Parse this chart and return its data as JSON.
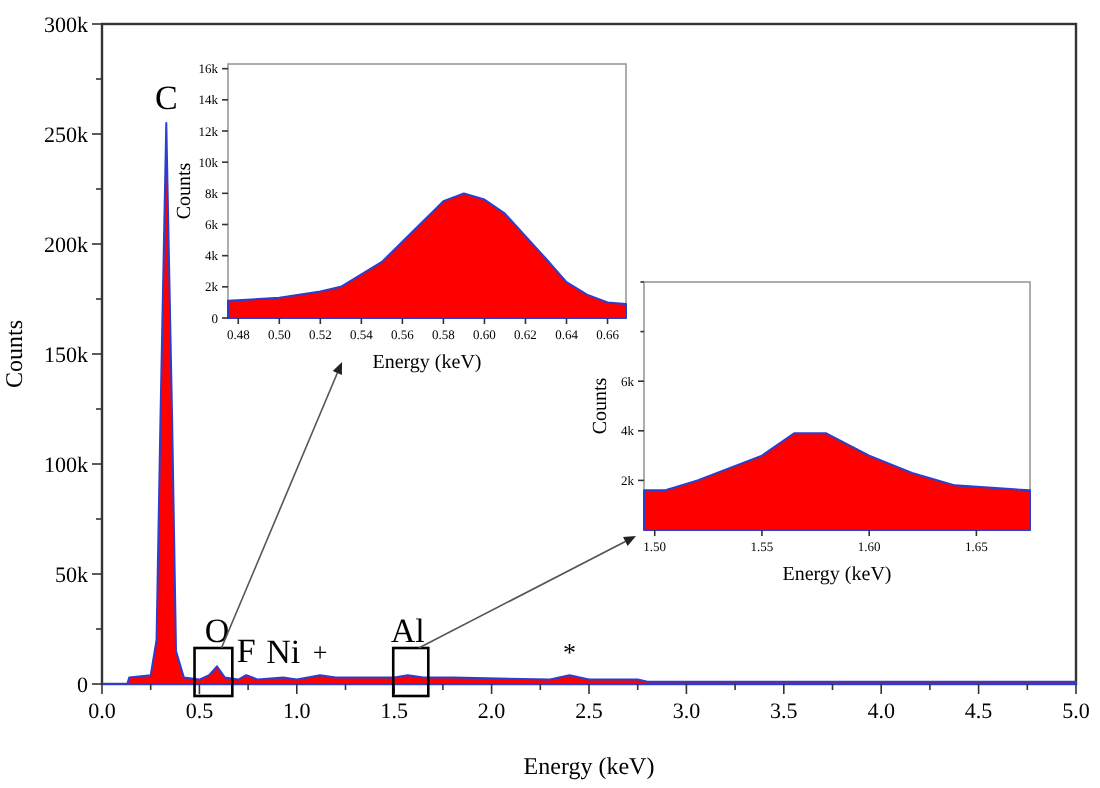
{
  "chart_data": [
    {
      "type": "area",
      "xlabel": "Energy (keV)",
      "ylabel": "Counts",
      "xlim": [
        0,
        5
      ],
      "ylim": [
        0,
        300000
      ],
      "xticks": [
        {
          "value": 0,
          "label": "0.0"
        },
        {
          "value": 0.25,
          "label": null
        },
        {
          "value": 0.5,
          "label": "0.5"
        },
        {
          "value": 0.75,
          "label": null
        },
        {
          "value": 1,
          "label": "1.0"
        },
        {
          "value": 1.25,
          "label": null
        },
        {
          "value": 1.5,
          "label": "1.5"
        },
        {
          "value": 1.75,
          "label": null
        },
        {
          "value": 2,
          "label": "2.0"
        },
        {
          "value": 2.25,
          "label": null
        },
        {
          "value": 2.5,
          "label": "2.5"
        },
        {
          "value": 2.75,
          "label": null
        },
        {
          "value": 3,
          "label": "3.0"
        },
        {
          "value": 3.25,
          "label": null
        },
        {
          "value": 3.5,
          "label": "3.5"
        },
        {
          "value": 3.75,
          "label": null
        },
        {
          "value": 4,
          "label": "4.0"
        },
        {
          "value": 4.25,
          "label": null
        },
        {
          "value": 4.5,
          "label": "4.5"
        },
        {
          "value": 4.75,
          "label": null
        },
        {
          "value": 5,
          "label": "5.0"
        }
      ],
      "yticks": [
        {
          "value": 0,
          "label": "0"
        },
        {
          "value": 25000,
          "label": null
        },
        {
          "value": 50000,
          "label": "50k"
        },
        {
          "value": 75000,
          "label": null
        },
        {
          "value": 100000,
          "label": "100k"
        },
        {
          "value": 125000,
          "label": null
        },
        {
          "value": 150000,
          "label": "150k"
        },
        {
          "value": 175000,
          "label": null
        },
        {
          "value": 200000,
          "label": "200k"
        },
        {
          "value": 225000,
          "label": null
        },
        {
          "value": 250000,
          "label": "250k"
        },
        {
          "value": 275000,
          "label": null
        },
        {
          "value": 300000,
          "label": "300k"
        }
      ],
      "series": [
        {
          "color": "#ff0000",
          "x": [
            0,
            0.13,
            0.14,
            0.25,
            0.28,
            0.3,
            0.33,
            0.36,
            0.38,
            0.42,
            0.5,
            0.55,
            0.59,
            0.63,
            0.7,
            0.74,
            0.8,
            0.93,
            1.0,
            1.12,
            1.2,
            1.5,
            1.57,
            1.65,
            1.8,
            2.3,
            2.4,
            2.5,
            2.75,
            2.8,
            5.0
          ],
          "values": [
            0,
            0,
            3000,
            4000,
            20000,
            120000,
            255000,
            120000,
            15000,
            3000,
            2000,
            4000,
            8000,
            3000,
            2000,
            4000,
            2000,
            3000,
            2000,
            4000,
            3000,
            3000,
            4000,
            3000,
            3000,
            2000,
            4000,
            2000,
            2000,
            1000,
            1000
          ]
        }
      ],
      "annotations": [
        {
          "text": "C",
          "x": 0.33,
          "y": 255000
        },
        {
          "text": "O",
          "x": 0.59,
          "y": 8000
        },
        {
          "text": "F",
          "x": 0.74,
          "y": 3500
        },
        {
          "text": "Ni",
          "x": 0.93,
          "y": 3000
        },
        {
          "text": "+",
          "x": 1.12,
          "y": 4000
        },
        {
          "text": "Al",
          "x": 1.57,
          "y": 4000
        },
        {
          "text": "*",
          "x": 2.4,
          "y": 4000
        }
      ]
    },
    {
      "type": "area",
      "xlabel": "Energy (keV)",
      "ylabel": "Counts",
      "xlim": [
        0.475,
        0.669
      ],
      "ylim": [
        0,
        16300
      ],
      "xticks": [
        {
          "value": 0.48,
          "label": "0.48"
        },
        {
          "value": 0.5,
          "label": "0.50"
        },
        {
          "value": 0.52,
          "label": "0.52"
        },
        {
          "value": 0.54,
          "label": "0.54"
        },
        {
          "value": 0.56,
          "label": "0.56"
        },
        {
          "value": 0.58,
          "label": "0.58"
        },
        {
          "value": 0.6,
          "label": "0.60"
        },
        {
          "value": 0.62,
          "label": "0.62"
        },
        {
          "value": 0.64,
          "label": "0.64"
        },
        {
          "value": 0.66,
          "label": "0.66"
        }
      ],
      "yticks": [
        {
          "value": 0,
          "label": "0"
        },
        {
          "value": 2000,
          "label": "2k"
        },
        {
          "value": 4000,
          "label": "4k"
        },
        {
          "value": 6000,
          "label": "6k"
        },
        {
          "value": 8000,
          "label": "8k"
        },
        {
          "value": 10000,
          "label": "10k"
        },
        {
          "value": 12000,
          "label": "12k"
        },
        {
          "value": 14000,
          "label": "14k"
        },
        {
          "value": 16000,
          "label": "16k"
        }
      ],
      "series": [
        {
          "color": "#ff0000",
          "x": [
            0.475,
            0.5,
            0.52,
            0.53,
            0.55,
            0.57,
            0.58,
            0.59,
            0.6,
            0.61,
            0.63,
            0.64,
            0.65,
            0.66,
            0.669
          ],
          "values": [
            1100,
            1300,
            1700,
            2000,
            3600,
            6200,
            7500,
            8000,
            7600,
            6700,
            3800,
            2300,
            1500,
            1000,
            900
          ]
        }
      ]
    },
    {
      "type": "area",
      "xlabel": "Energy (keV)",
      "ylabel": "Counts",
      "xlim": [
        1.495,
        1.675
      ],
      "ylim": [
        0,
        10000
      ],
      "xticks": [
        {
          "value": 1.5,
          "label": "1.50"
        },
        {
          "value": 1.55,
          "label": "1.55"
        },
        {
          "value": 1.6,
          "label": "1.60"
        },
        {
          "value": 1.65,
          "label": "1.65"
        }
      ],
      "yticks": [
        {
          "value": 2000,
          "label": "2k"
        },
        {
          "value": 4000,
          "label": "4k"
        },
        {
          "value": 6000,
          "label": "6k"
        },
        {
          "value": 8000,
          "label": null
        },
        {
          "value": 10000,
          "label": null
        }
      ],
      "series": [
        {
          "color": "#ff0000",
          "x": [
            1.495,
            1.505,
            1.52,
            1.55,
            1.565,
            1.58,
            1.6,
            1.62,
            1.64,
            1.675
          ],
          "values": [
            1600,
            1600,
            2000,
            3000,
            3900,
            3900,
            3000,
            2300,
            1800,
            1600
          ]
        }
      ]
    }
  ]
}
